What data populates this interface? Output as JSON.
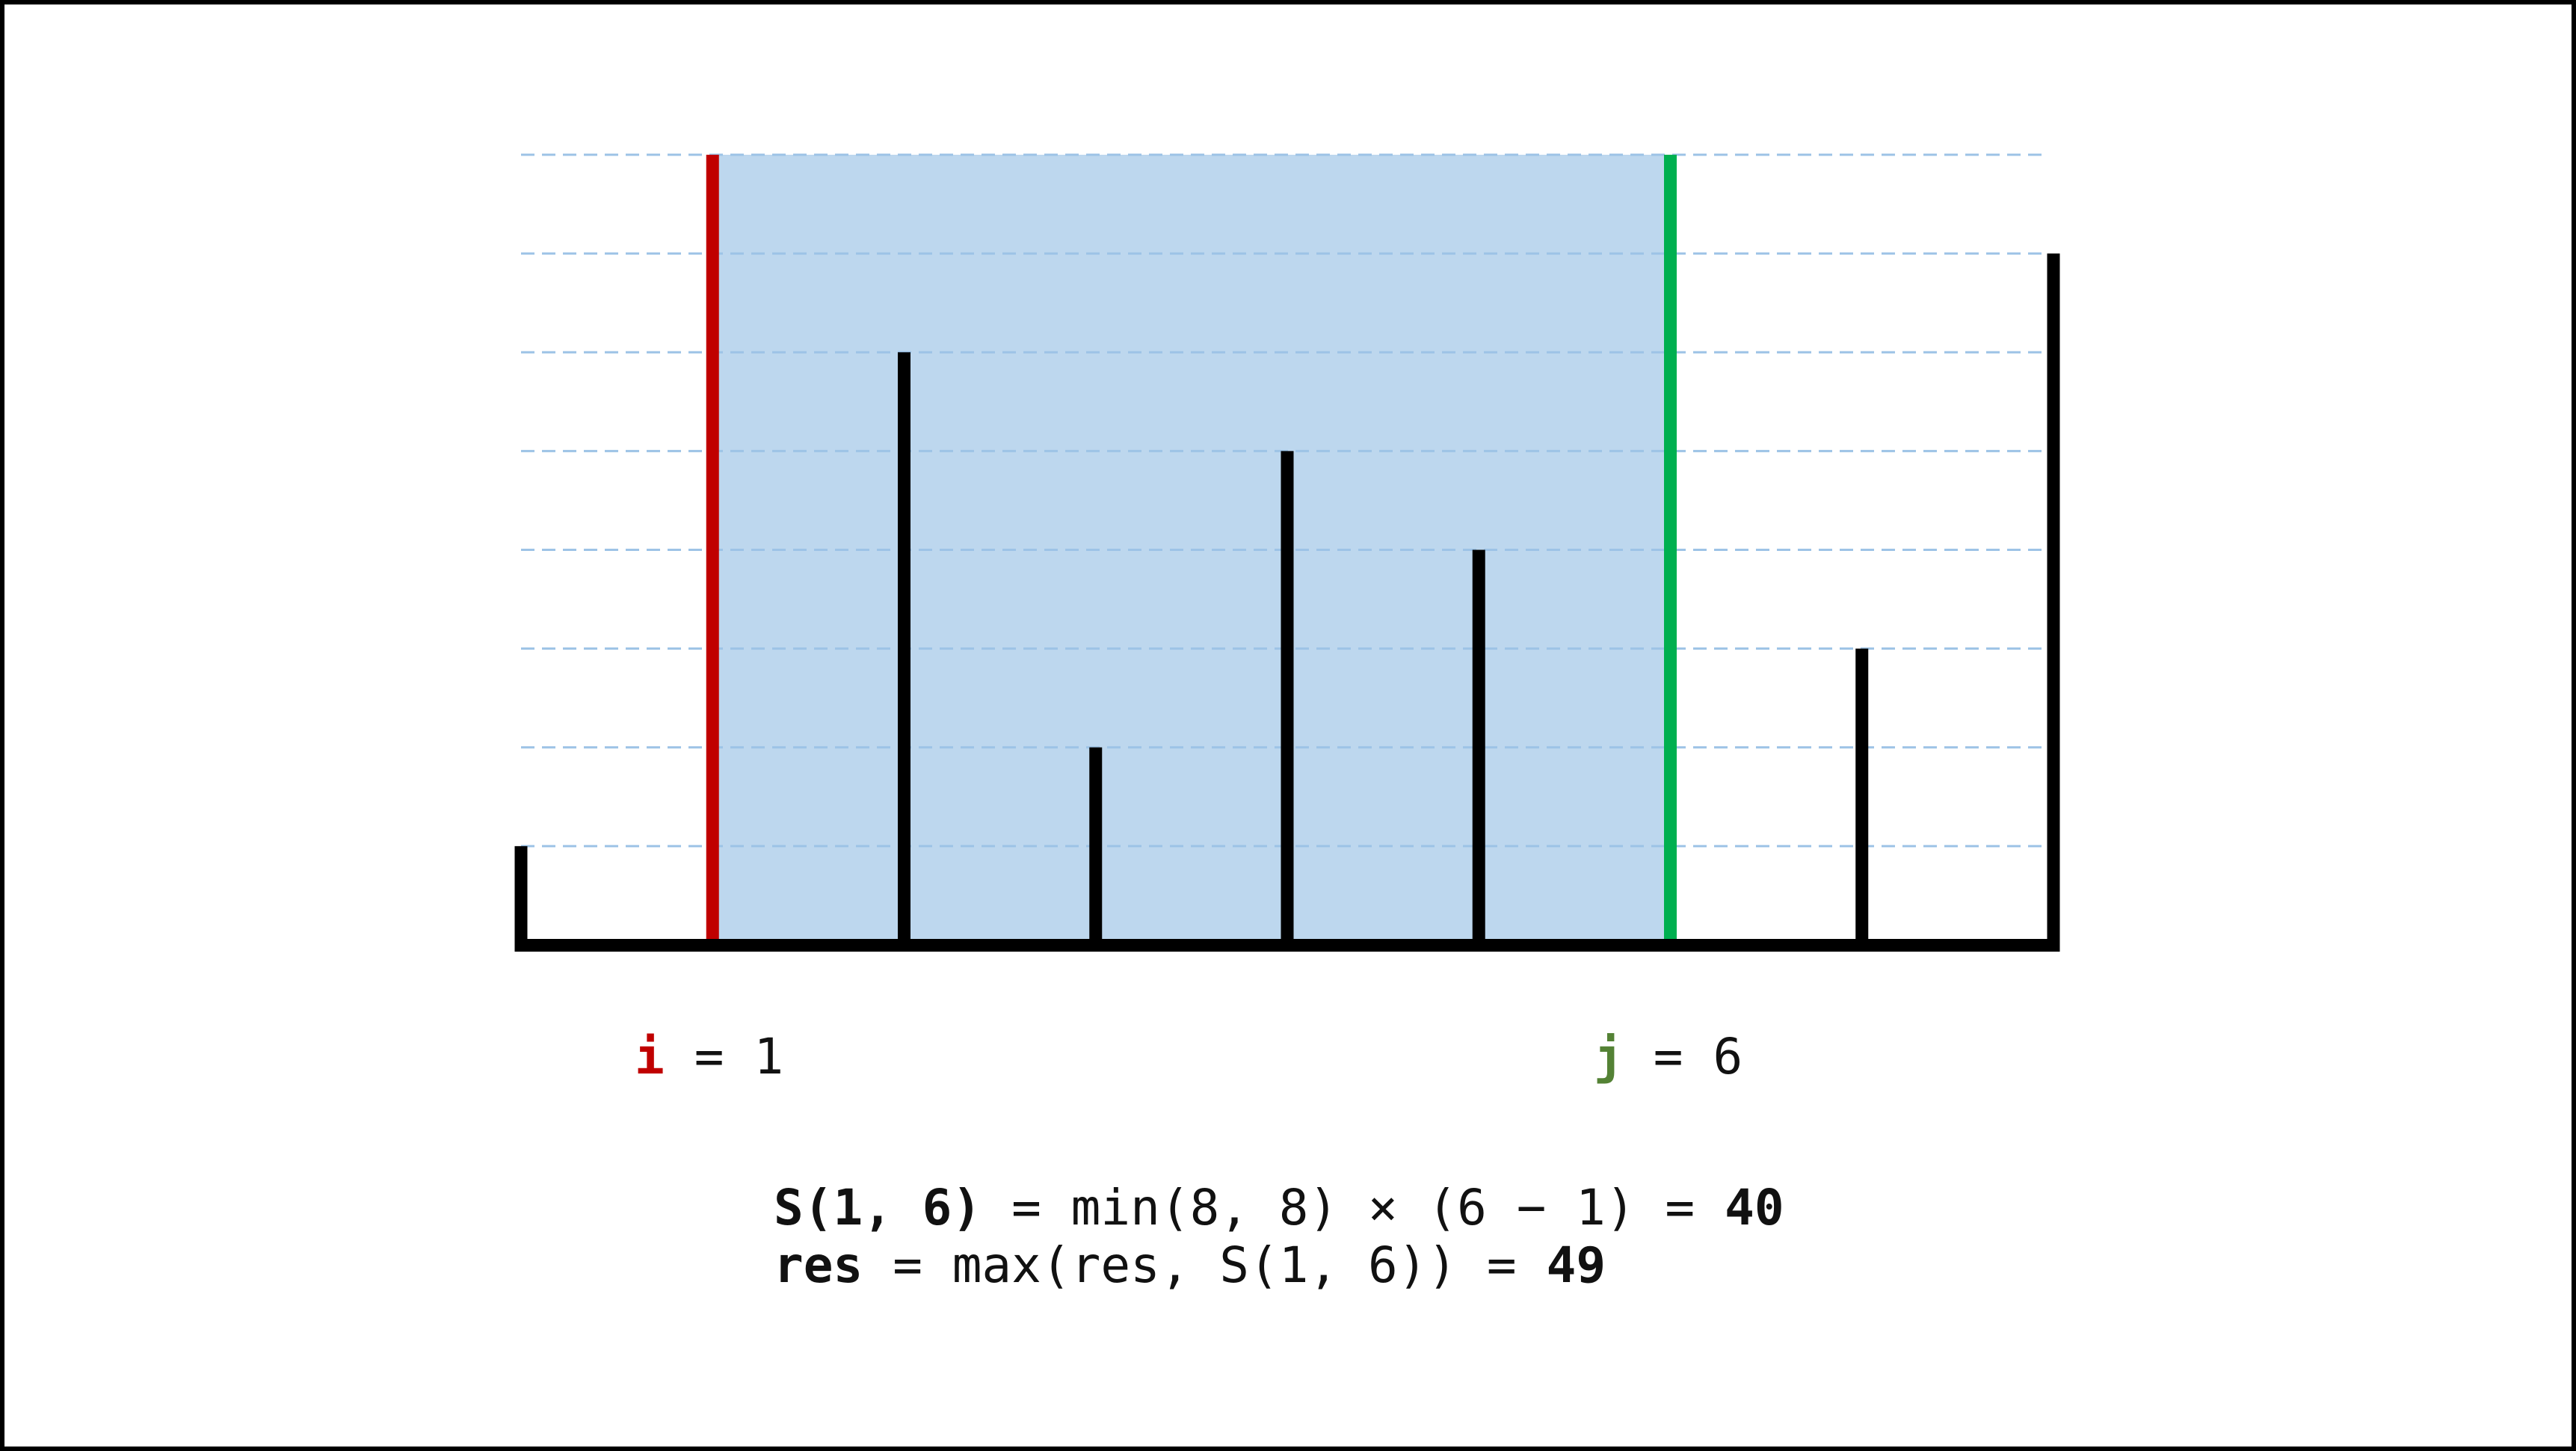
{
  "heights": [
    1,
    8,
    6,
    2,
    5,
    4,
    8,
    3,
    7
  ],
  "ylim": [
    0,
    8
  ],
  "grid": true,
  "pointers": [
    {
      "name": "i",
      "eq": "=",
      "value": 1,
      "color": "#c00000",
      "label_color": "#c00000"
    },
    {
      "name": "j",
      "eq": "=",
      "value": 6,
      "color": "#00b050",
      "label_color": "#548235"
    }
  ],
  "area_color": "#bdd7ee",
  "formula": [
    {
      "lhs": "S(1, 6)",
      "expr": "= min(8, 8) × (6 − 1) =",
      "result": 40
    },
    {
      "lhs": "res",
      "expr": "= max(res, S(1, 6)) =",
      "result": 49
    }
  ]
}
